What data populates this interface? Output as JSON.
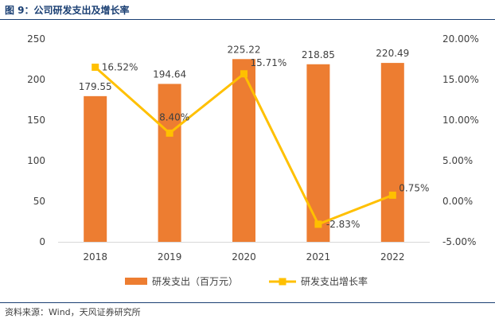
{
  "header": {
    "title": "图 9：公司研发支出及增长率"
  },
  "footer": {
    "source": "资料来源：Wind，天风证券研究所"
  },
  "colors": {
    "bar": "#ED7D31",
    "line": "#FFC000",
    "text": "#404040",
    "title": "#1A3F73"
  },
  "chart_data": {
    "type": "bar+line",
    "categories": [
      "2018",
      "2019",
      "2020",
      "2021",
      "2022"
    ],
    "series": [
      {
        "name": "研发支出（百万元）",
        "type": "bar",
        "axis": "left",
        "values": [
          179.55,
          194.64,
          225.22,
          218.85,
          220.49
        ],
        "labels": [
          "179.55",
          "194.64",
          "225.22",
          "218.85",
          "220.49"
        ]
      },
      {
        "name": "研发支出增长率",
        "type": "line",
        "axis": "right",
        "values": [
          16.52,
          8.4,
          15.71,
          -2.83,
          0.75
        ],
        "labels": [
          "16.52%",
          "8.40%",
          "15.71%",
          "-2.83%",
          "0.75%"
        ]
      }
    ],
    "y_left": {
      "min": 0,
      "max": 250,
      "ticks": [
        "0",
        "50",
        "100",
        "150",
        "200",
        "250"
      ]
    },
    "y_right": {
      "min": -5,
      "max": 20,
      "ticks": [
        "-5.00%",
        "0.00%",
        "5.00%",
        "10.00%",
        "15.00%",
        "20.00%"
      ]
    },
    "legend_position": "bottom",
    "grid": false
  }
}
